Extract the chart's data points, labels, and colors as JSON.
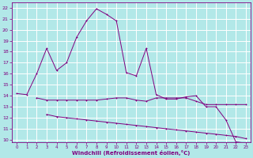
{
  "xlabel": "Windchill (Refroidissement éolien,°C)",
  "bg_color": "#b2e8e8",
  "grid_color": "#ffffff",
  "line_color": "#800080",
  "x_line1": [
    0,
    1,
    2,
    3,
    4,
    5,
    6,
    7,
    8,
    9,
    10,
    11,
    12,
    13,
    14,
    15,
    16,
    17,
    18,
    19,
    20,
    21,
    22,
    23
  ],
  "y_line1": [
    14.2,
    14.1,
    16.0,
    18.3,
    16.3,
    17.0,
    19.3,
    20.8,
    21.9,
    21.4,
    20.8,
    16.1,
    15.8,
    18.3,
    14.1,
    13.7,
    13.7,
    13.9,
    14.0,
    13.0,
    13.0,
    11.8,
    9.8,
    9.7
  ],
  "x_line2": [
    2,
    3,
    4,
    5,
    6,
    7,
    8,
    9,
    10,
    11,
    12,
    13,
    14,
    15,
    16,
    17,
    18,
    19,
    20,
    21,
    22,
    23
  ],
  "y_line2": [
    13.8,
    13.6,
    13.6,
    13.6,
    13.6,
    13.6,
    13.6,
    13.7,
    13.8,
    13.8,
    13.6,
    13.5,
    13.8,
    13.8,
    13.8,
    13.8,
    13.5,
    13.2,
    13.2,
    13.2,
    13.2,
    13.2
  ],
  "x_line3": [
    3,
    4,
    5,
    6,
    7,
    8,
    9,
    10,
    11,
    12,
    13,
    14,
    15,
    16,
    17,
    18,
    19,
    20,
    21,
    22,
    23
  ],
  "y_line3": [
    12.3,
    12.1,
    12.0,
    11.9,
    11.8,
    11.7,
    11.6,
    11.5,
    11.4,
    11.3,
    11.2,
    11.1,
    11.0,
    10.9,
    10.8,
    10.7,
    10.6,
    10.5,
    10.4,
    10.3,
    10.1
  ],
  "xlim": [
    -0.5,
    23.5
  ],
  "ylim": [
    9.8,
    22.5
  ],
  "yticks": [
    10,
    11,
    12,
    13,
    14,
    15,
    16,
    17,
    18,
    19,
    20,
    21,
    22
  ],
  "xticks": [
    0,
    1,
    2,
    3,
    4,
    5,
    6,
    7,
    8,
    9,
    10,
    11,
    12,
    13,
    14,
    15,
    16,
    17,
    18,
    19,
    20,
    21,
    22,
    23
  ]
}
